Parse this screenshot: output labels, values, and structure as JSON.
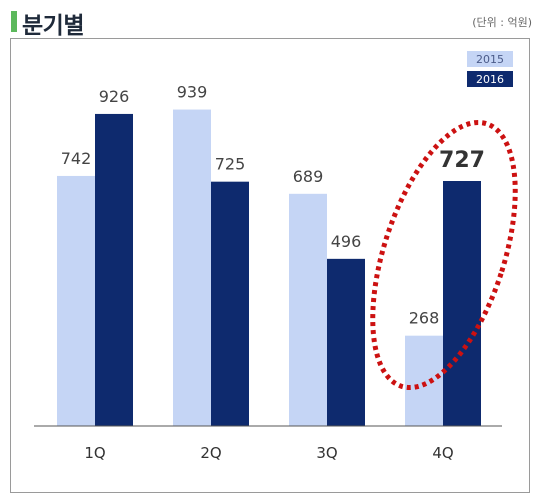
{
  "page": {
    "title": "분기별",
    "unit_note": "(단위 : 억원)"
  },
  "colors": {
    "s2015": "#c5d5f5",
    "s2016": "#0e2a6e",
    "accent_bar": "#5cb85c",
    "highlight": "#cc1111"
  },
  "chart_data": {
    "type": "bar",
    "categories": [
      "1Q",
      "2Q",
      "3Q",
      "4Q"
    ],
    "series": [
      {
        "name": "2015",
        "values": [
          742,
          939,
          689,
          268
        ]
      },
      {
        "name": "2016",
        "values": [
          926,
          725,
          496,
          727
        ]
      }
    ],
    "ylim": [
      0,
      1000
    ],
    "grid": false,
    "legend": "top-right",
    "annotation": {
      "type": "dotted-ellipse",
      "category": "4Q"
    }
  }
}
